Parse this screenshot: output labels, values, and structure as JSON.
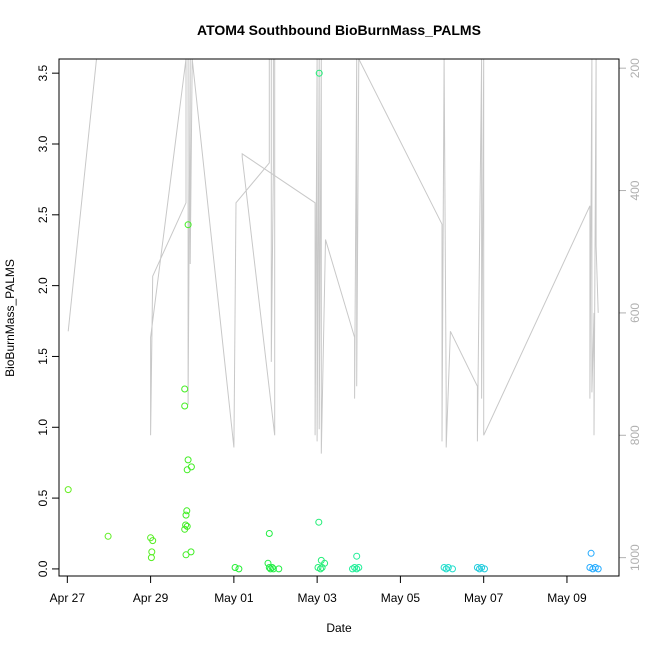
{
  "chart_data": {
    "type": "scatter",
    "title": "ATOM4 Southbound BioBurnMass_PALMS",
    "xlabel": "Date",
    "ylabel": "BioBurnMass_PALMS",
    "x_axis": {
      "min": 26.8,
      "max": 40.25,
      "ticks": [
        {
          "value": 27,
          "label": "Apr 27"
        },
        {
          "value": 29,
          "label": "Apr 29"
        },
        {
          "value": 31,
          "label": "May 01"
        },
        {
          "value": 33,
          "label": "May 03"
        },
        {
          "value": 35,
          "label": "May 05"
        },
        {
          "value": 37,
          "label": "May 07"
        },
        {
          "value": 39,
          "label": "May 09"
        }
      ]
    },
    "y_axis": {
      "min": -0.05,
      "max": 3.6,
      "ticks": [
        {
          "value": 0.0,
          "label": "0.0"
        },
        {
          "value": 0.5,
          "label": "0.5"
        },
        {
          "value": 1.0,
          "label": "1.0"
        },
        {
          "value": 1.5,
          "label": "1.5"
        },
        {
          "value": 2.0,
          "label": "2.0"
        },
        {
          "value": 2.5,
          "label": "2.5"
        },
        {
          "value": 3.0,
          "label": "3.0"
        },
        {
          "value": 3.5,
          "label": "3.5"
        }
      ]
    },
    "y2_axis": {
      "min": 185,
      "max": 1030,
      "inverted": true,
      "color": "#b0b0b0",
      "ticks": [
        {
          "value": 200,
          "label": "200"
        },
        {
          "value": 400,
          "label": "400"
        },
        {
          "value": 600,
          "label": "600"
        },
        {
          "value": 800,
          "label": "800"
        },
        {
          "value": 1000,
          "label": "1000"
        }
      ]
    },
    "points": [
      {
        "x": 27.02,
        "y": 0.56,
        "color": "#66ee22"
      },
      {
        "x": 27.98,
        "y": 0.23,
        "color": "#5eee22"
      },
      {
        "x": 29.0,
        "y": 0.22,
        "color": "#55ee22"
      },
      {
        "x": 29.05,
        "y": 0.2,
        "color": "#55ee22"
      },
      {
        "x": 29.03,
        "y": 0.12,
        "color": "#55ee22"
      },
      {
        "x": 29.02,
        "y": 0.08,
        "color": "#55ee22"
      },
      {
        "x": 29.82,
        "y": 1.27,
        "color": "#44ee22"
      },
      {
        "x": 29.82,
        "y": 1.15,
        "color": "#44ee22"
      },
      {
        "x": 29.9,
        "y": 2.43,
        "color": "#40ee22"
      },
      {
        "x": 29.9,
        "y": 0.77,
        "color": "#40ee22"
      },
      {
        "x": 29.88,
        "y": 0.7,
        "color": "#40ee22"
      },
      {
        "x": 29.98,
        "y": 0.72,
        "color": "#3eee22"
      },
      {
        "x": 29.87,
        "y": 0.41,
        "color": "#40ee22"
      },
      {
        "x": 29.85,
        "y": 0.38,
        "color": "#40ee22"
      },
      {
        "x": 29.84,
        "y": 0.31,
        "color": "#40ee22"
      },
      {
        "x": 29.88,
        "y": 0.3,
        "color": "#40ee22"
      },
      {
        "x": 29.82,
        "y": 0.28,
        "color": "#44ee22"
      },
      {
        "x": 29.85,
        "y": 0.1,
        "color": "#40ee22"
      },
      {
        "x": 29.97,
        "y": 0.12,
        "color": "#3eee22"
      },
      {
        "x": 31.03,
        "y": 0.01,
        "color": "#22ee33"
      },
      {
        "x": 31.12,
        "y": 0.0,
        "color": "#22ee33"
      },
      {
        "x": 31.85,
        "y": 0.25,
        "color": "#22ee44"
      },
      {
        "x": 31.82,
        "y": 0.04,
        "color": "#22ee44"
      },
      {
        "x": 31.85,
        "y": 0.01,
        "color": "#22ee44"
      },
      {
        "x": 31.88,
        "y": 0.0,
        "color": "#22ee44"
      },
      {
        "x": 31.92,
        "y": 0.01,
        "color": "#22ee44"
      },
      {
        "x": 31.95,
        "y": 0.0,
        "color": "#22ee44"
      },
      {
        "x": 32.08,
        "y": 0.0,
        "color": "#22ee44"
      },
      {
        "x": 33.05,
        "y": 3.5,
        "color": "#22ee77"
      },
      {
        "x": 33.04,
        "y": 0.33,
        "color": "#22ee77"
      },
      {
        "x": 33.1,
        "y": 0.06,
        "color": "#22ee77"
      },
      {
        "x": 33.18,
        "y": 0.04,
        "color": "#22ee77"
      },
      {
        "x": 33.02,
        "y": 0.01,
        "color": "#22ee77"
      },
      {
        "x": 33.08,
        "y": 0.0,
        "color": "#22ee77"
      },
      {
        "x": 33.12,
        "y": 0.01,
        "color": "#22ee77"
      },
      {
        "x": 33.95,
        "y": 0.09,
        "color": "#22ee99"
      },
      {
        "x": 33.9,
        "y": 0.01,
        "color": "#22ee99"
      },
      {
        "x": 33.95,
        "y": 0.0,
        "color": "#22ee99"
      },
      {
        "x": 34.0,
        "y": 0.01,
        "color": "#22ee99"
      },
      {
        "x": 33.85,
        "y": 0.0,
        "color": "#22ee99"
      },
      {
        "x": 36.05,
        "y": 0.01,
        "color": "#22ddcc"
      },
      {
        "x": 36.1,
        "y": 0.0,
        "color": "#22ddcc"
      },
      {
        "x": 36.15,
        "y": 0.01,
        "color": "#22ddcc"
      },
      {
        "x": 36.25,
        "y": 0.0,
        "color": "#22ddcc"
      },
      {
        "x": 36.85,
        "y": 0.01,
        "color": "#22ccdd"
      },
      {
        "x": 36.9,
        "y": 0.0,
        "color": "#22ccdd"
      },
      {
        "x": 36.95,
        "y": 0.01,
        "color": "#22ccdd"
      },
      {
        "x": 37.02,
        "y": 0.0,
        "color": "#22ccdd"
      },
      {
        "x": 39.58,
        "y": 0.11,
        "color": "#22aaff"
      },
      {
        "x": 39.55,
        "y": 0.01,
        "color": "#22aaff"
      },
      {
        "x": 39.62,
        "y": 0.0,
        "color": "#22aaff"
      },
      {
        "x": 39.68,
        "y": 0.01,
        "color": "#22aaff"
      },
      {
        "x": 39.75,
        "y": 0.0,
        "color": "#22aaff"
      }
    ],
    "pressure_line": {
      "color": "#c8c8c8",
      "x": [
        27.02,
        27.7,
        29.85,
        29.0,
        29.0,
        29.05,
        29.85,
        29.85,
        29.9,
        29.9,
        29.95,
        29.95,
        30.0,
        30.0,
        31.0,
        31.05,
        31.85,
        31.85,
        31.9,
        31.9,
        31.95,
        31.95,
        31.98,
        31.98,
        31.2,
        31.2,
        32.95,
        32.95,
        33.0,
        33.0,
        33.05,
        33.05,
        33.1,
        33.1,
        33.2,
        33.2,
        33.9,
        33.9,
        33.95,
        33.95,
        34.0,
        34.0,
        36.0,
        36.0,
        36.05,
        36.05,
        36.1,
        36.1,
        36.2,
        36.2,
        36.85,
        36.85,
        36.95,
        36.95,
        37.0,
        37.0,
        39.55,
        39.55,
        39.6,
        39.6,
        39.65,
        39.65,
        39.7,
        39.7,
        39.75
      ],
      "y": [
        630,
        185,
        185,
        640,
        800,
        540,
        420,
        185,
        185,
        750,
        185,
        520,
        185,
        185,
        820,
        420,
        355,
        185,
        185,
        680,
        360,
        185,
        185,
        800,
        345,
        340,
        420,
        800,
        185,
        810,
        185,
        790,
        185,
        830,
        480,
        480,
        640,
        740,
        185,
        720,
        185,
        185,
        455,
        810,
        185,
        185,
        740,
        820,
        630,
        630,
        720,
        810,
        185,
        740,
        185,
        800,
        425,
        740,
        185,
        730,
        600,
        800,
        185,
        490,
        600
      ]
    }
  }
}
